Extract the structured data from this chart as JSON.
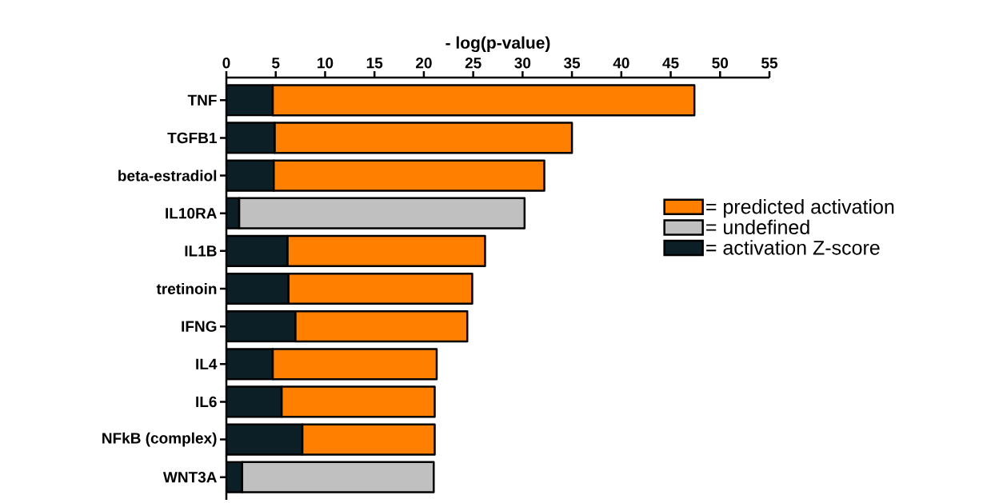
{
  "chart_data": {
    "type": "bar",
    "orientation": "horizontal",
    "stacked": true,
    "xlabel": "- log(p-value)",
    "categories": [
      "TNF",
      "TGFB1",
      "beta-estradiol",
      "IL10RA",
      "IL1B",
      "tretinoin",
      "IFNG",
      "IL4",
      "IL6",
      "NFkB (complex)",
      "WNT3A"
    ],
    "series": [
      {
        "name": "= activation Z-score",
        "color": "#0d1f26",
        "values": [
          4.7,
          4.9,
          4.8,
          1.3,
          6.2,
          6.3,
          7.0,
          4.7,
          5.6,
          7.7,
          1.6
        ]
      },
      {
        "name": "= predicted activation",
        "color": "#ff8000",
        "values": [
          42.7,
          30.1,
          27.4,
          null,
          20.0,
          18.6,
          17.4,
          16.6,
          15.5,
          13.4,
          null
        ]
      },
      {
        "name": "= undefined",
        "color": "#c0c0c0",
        "values": [
          null,
          null,
          null,
          28.9,
          null,
          null,
          null,
          null,
          null,
          null,
          19.4
        ]
      }
    ],
    "xlim": [
      0,
      55
    ],
    "xticks": [
      0,
      5,
      10,
      15,
      20,
      25,
      30,
      35,
      40,
      45,
      50,
      55
    ],
    "grid": false,
    "legend": "right"
  }
}
